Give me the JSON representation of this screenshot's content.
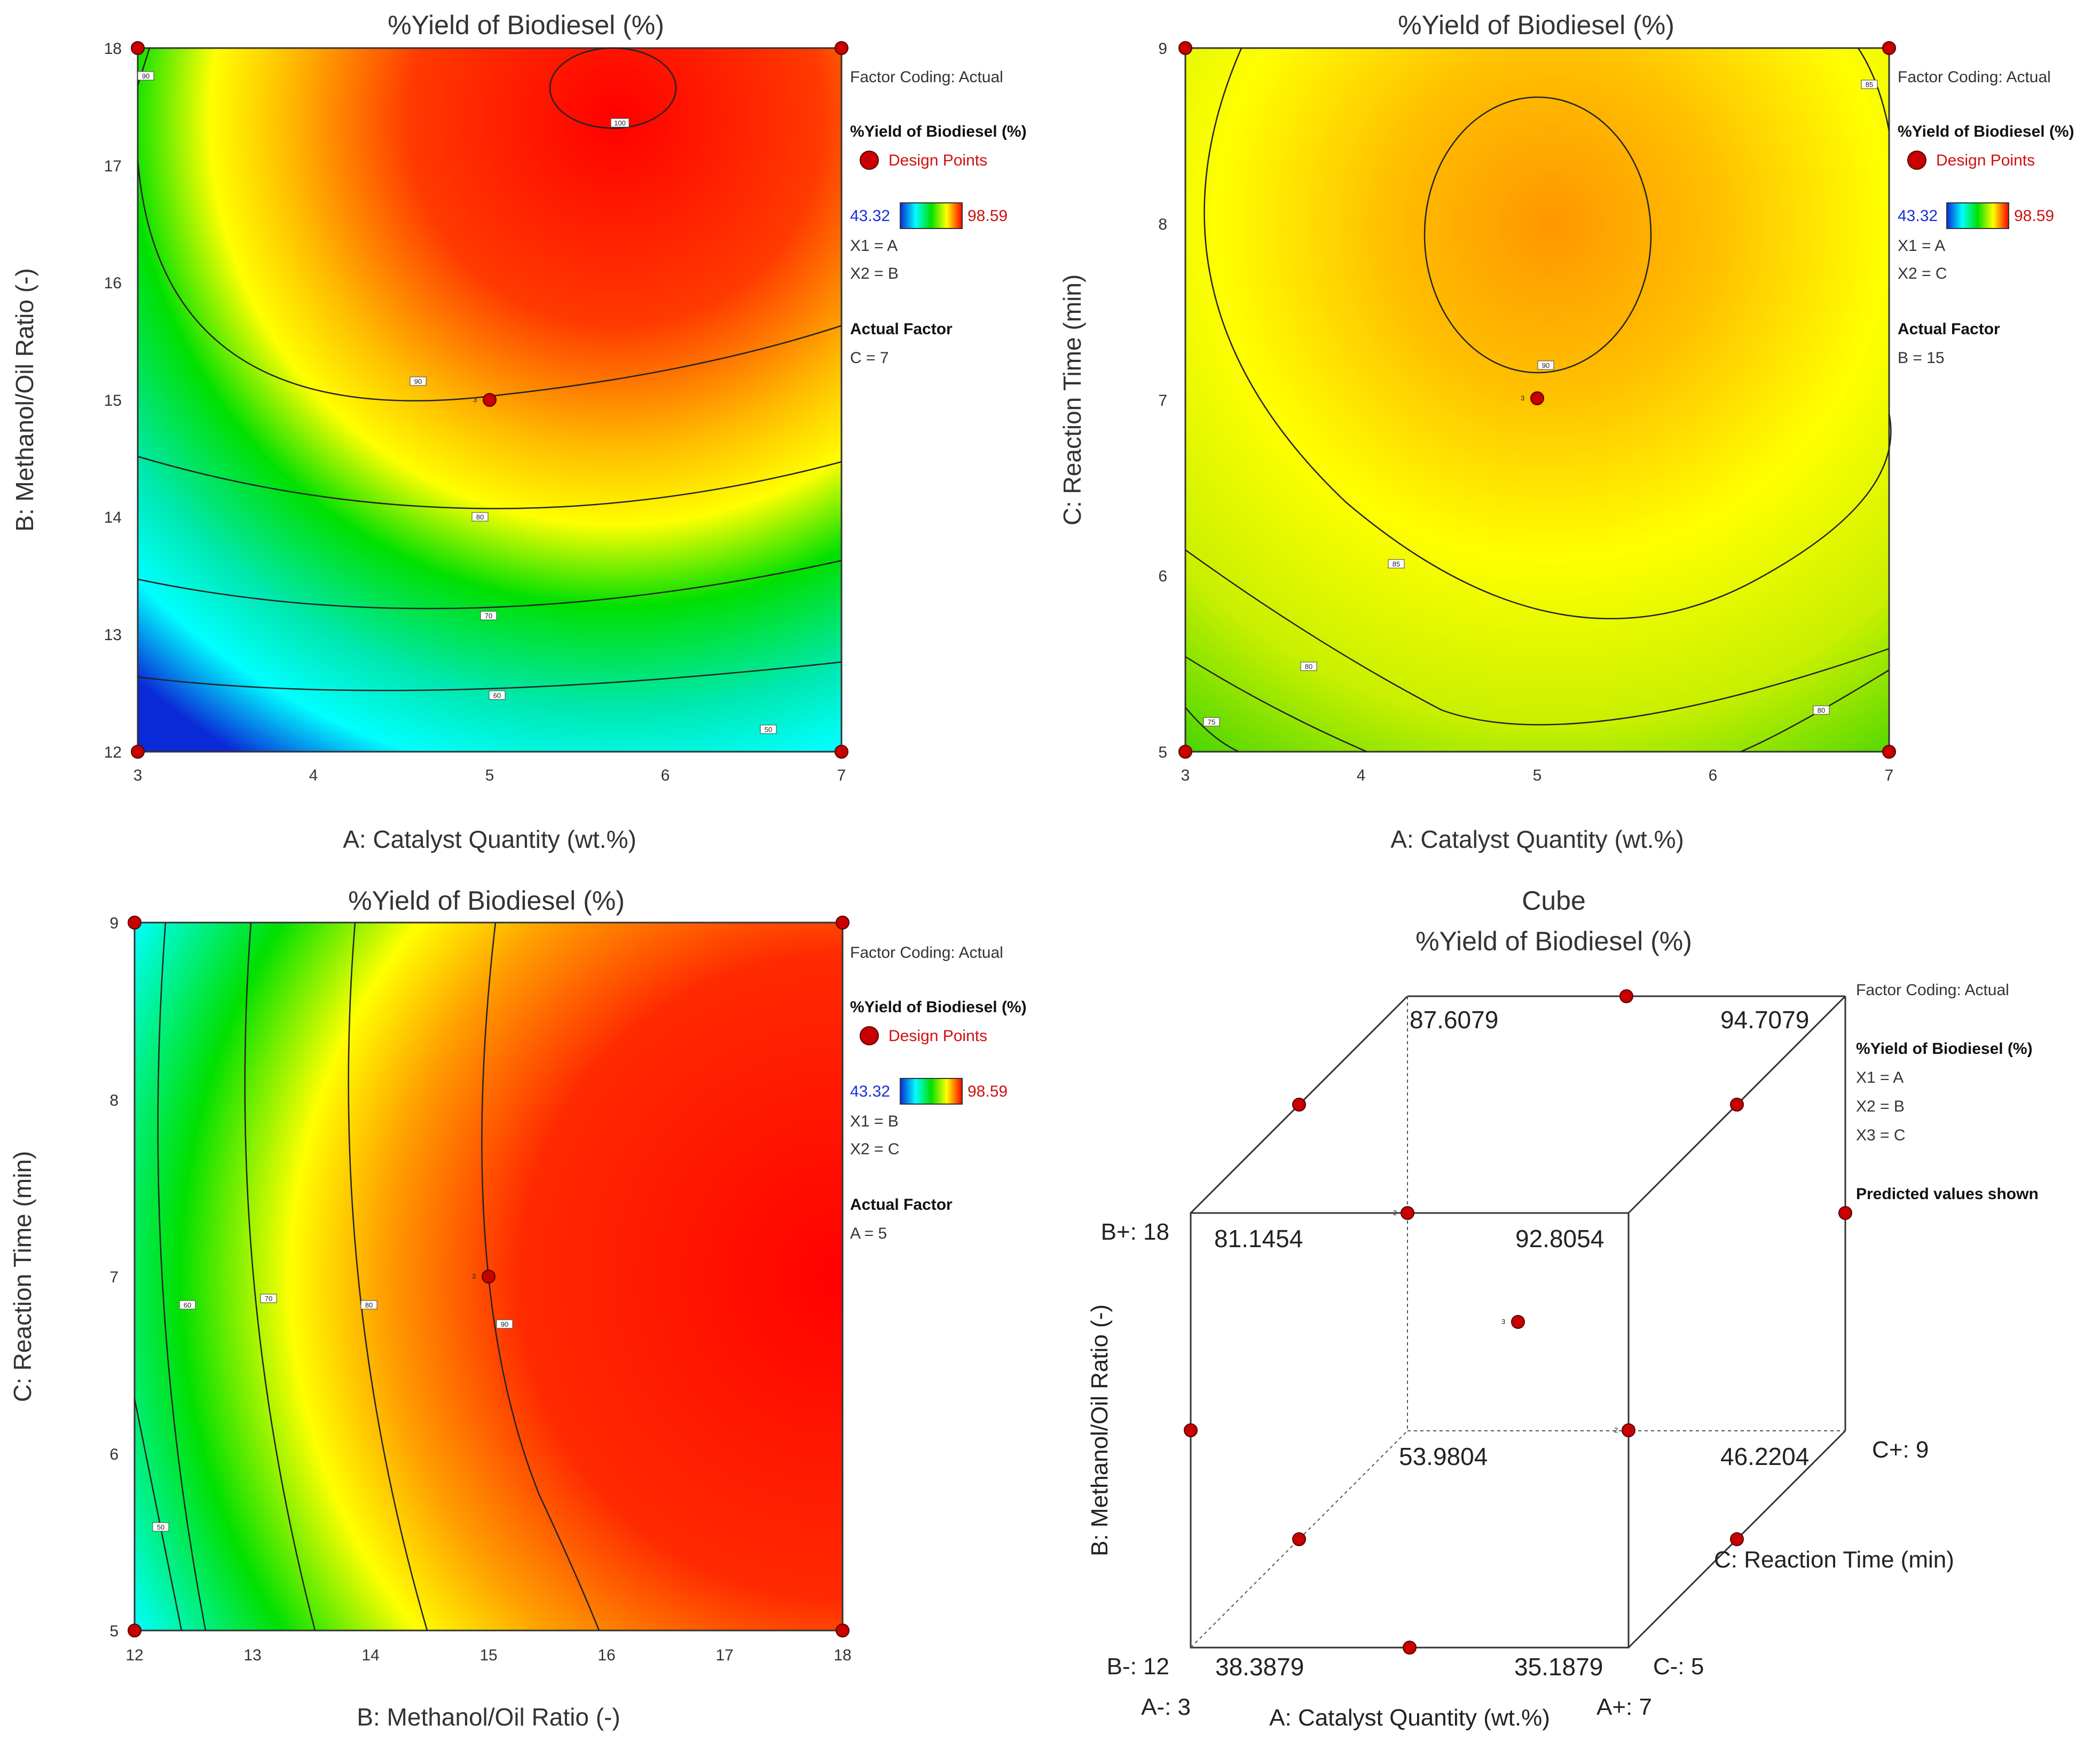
{
  "chart_data": [
    {
      "type": "contour",
      "title": "%Yield of Biodiesel (%)",
      "xlabel": "A: Catalyst Quantity (wt.%)",
      "ylabel": "B: Methanol/Oil Ratio (-)",
      "xlim": [
        3,
        7
      ],
      "ylim": [
        12,
        18
      ],
      "xticks": [
        "3",
        "4",
        "5",
        "6",
        "7"
      ],
      "yticks": [
        "12",
        "13",
        "14",
        "15",
        "16",
        "17",
        "18"
      ],
      "contour_labels": [
        "50",
        "60",
        "70",
        "80",
        "90",
        "90",
        "100"
      ],
      "center_point_label": "3",
      "design_points": [
        [
          3,
          12
        ],
        [
          7,
          12
        ],
        [
          3,
          18
        ],
        [
          7,
          18
        ],
        [
          5,
          15
        ]
      ],
      "legend": {
        "factor_coding": "Factor Coding: Actual",
        "response": "%Yield of Biodiesel (%)",
        "design_points": "Design Points",
        "min": "43.32",
        "max": "98.59",
        "x1": "X1 = A",
        "x2": "X2 = B",
        "actual_factor_title": "Actual Factor",
        "actual_factor": "C = 7"
      }
    },
    {
      "type": "contour",
      "title": "%Yield of Biodiesel (%)",
      "xlabel": "A: Catalyst Quantity (wt.%)",
      "ylabel": "C: Reaction Time (min)",
      "xlim": [
        3,
        7
      ],
      "ylim": [
        5,
        9
      ],
      "xticks": [
        "3",
        "4",
        "5",
        "6",
        "7"
      ],
      "yticks": [
        "5",
        "6",
        "7",
        "8",
        "9"
      ],
      "contour_labels": [
        "75",
        "80",
        "80",
        "85",
        "85",
        "90"
      ],
      "center_point_label": "3",
      "design_points": [
        [
          3,
          5
        ],
        [
          7,
          5
        ],
        [
          3,
          9
        ],
        [
          7,
          9
        ],
        [
          5,
          7
        ]
      ],
      "legend": {
        "factor_coding": "Factor Coding: Actual",
        "response": "%Yield of Biodiesel (%)",
        "design_points": "Design Points",
        "min": "43.32",
        "max": "98.59",
        "x1": "X1 = A",
        "x2": "X2 = C",
        "actual_factor_title": "Actual Factor",
        "actual_factor": "B = 15"
      }
    },
    {
      "type": "contour",
      "title": "%Yield of Biodiesel (%)",
      "xlabel": "B: Methanol/Oil Ratio (-)",
      "ylabel": "C: Reaction Time (min)",
      "xlim": [
        12,
        18
      ],
      "ylim": [
        5,
        9
      ],
      "xticks": [
        "12",
        "13",
        "14",
        "15",
        "16",
        "17",
        "18"
      ],
      "yticks": [
        "5",
        "6",
        "7",
        "8",
        "9"
      ],
      "contour_labels": [
        "50",
        "60",
        "70",
        "80",
        "90"
      ],
      "center_point_label": "3",
      "design_points": [
        [
          12,
          5
        ],
        [
          18,
          5
        ],
        [
          12,
          9
        ],
        [
          18,
          9
        ],
        [
          15,
          7
        ]
      ],
      "legend": {
        "factor_coding": "Factor Coding: Actual",
        "response": "%Yield of Biodiesel (%)",
        "design_points": "Design Points",
        "min": "43.32",
        "max": "98.59",
        "x1": "X1 = B",
        "x2": "X2 = C",
        "actual_factor_title": "Actual Factor",
        "actual_factor": "A = 5"
      }
    },
    {
      "type": "cube",
      "title": "Cube",
      "subtitle": "%Yield of Biodiesel (%)",
      "xlabel": "A: Catalyst Quantity (wt.%)",
      "ylabel": "B: Methanol/Oil Ratio (-)",
      "zlabel": "C: Reaction Time (min)",
      "corner_labels": {
        "a_minus": "A-: 3",
        "a_plus": "A+: 7",
        "b_minus": "B-: 12",
        "b_plus": "B+: 18",
        "c_minus": "C-: 5",
        "c_plus": "C+: 9"
      },
      "predicted_values": {
        "back_top_left": "87.6079",
        "back_top_right": "94.7079",
        "front_top_left": "81.1454",
        "front_top_right": "92.8054",
        "back_bottom_left": "53.9804",
        "back_bottom_right": "46.2204",
        "front_bottom_left": "38.3879",
        "front_bottom_right": "35.1879"
      },
      "point_labels": [
        "2",
        "3",
        "2"
      ],
      "legend": {
        "factor_coding": "Factor Coding: Actual",
        "response": "%Yield of Biodiesel (%)",
        "x1": "X1 = A",
        "x2": "X2 = B",
        "x3": "X3 = C",
        "note": "Predicted values shown"
      }
    }
  ],
  "colors": {
    "low": "#0a2ad8",
    "cyan": "#00ffff",
    "green": "#00e000",
    "yellow": "#ffff00",
    "orange": "#ff9a00",
    "high": "#ff0000",
    "design_point": "#c80000",
    "legend_min": "#1a2fd6",
    "legend_max": "#d01010"
  }
}
